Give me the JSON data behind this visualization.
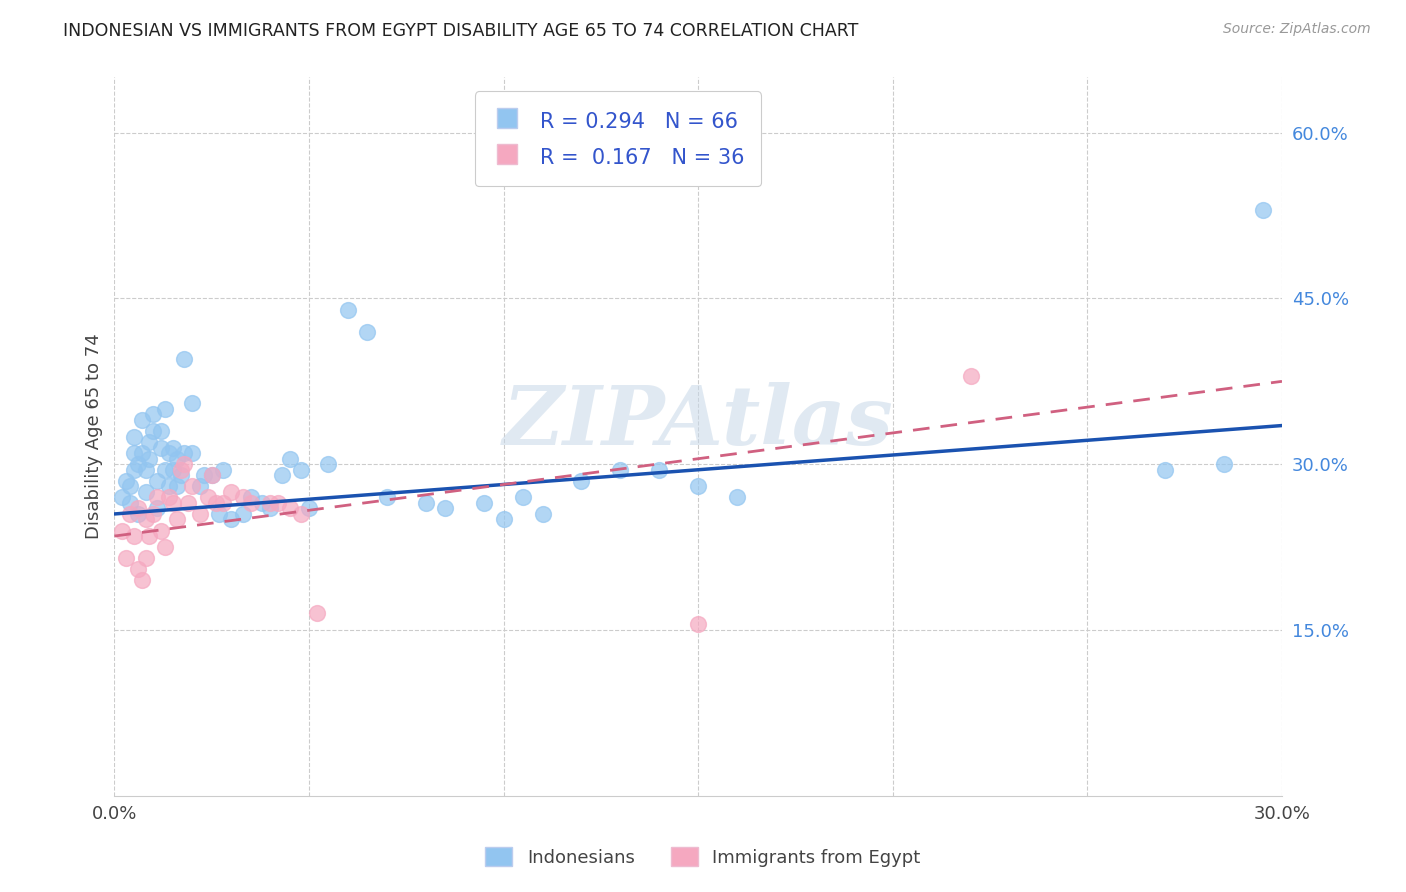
{
  "title": "INDONESIAN VS IMMIGRANTS FROM EGYPT DISABILITY AGE 65 TO 74 CORRELATION CHART",
  "source": "Source: ZipAtlas.com",
  "ylabel": "Disability Age 65 to 74",
  "xlim": [
    0.0,
    0.3
  ],
  "ylim": [
    0.0,
    0.65
  ],
  "xticks": [
    0.0,
    0.05,
    0.1,
    0.15,
    0.2,
    0.25,
    0.3
  ],
  "xtick_labels": [
    "0.0%",
    "",
    "",
    "",
    "",
    "",
    "30.0%"
  ],
  "yticks_right": [
    0.0,
    0.15,
    0.3,
    0.45,
    0.6
  ],
  "ytick_labels_right": [
    "",
    "15.0%",
    "30.0%",
    "45.0%",
    "60.0%"
  ],
  "legend_label_blue": "Indonesians",
  "legend_label_pink": "Immigrants from Egypt",
  "blue_color": "#92C5F0",
  "pink_color": "#F5A8C0",
  "blue_line_color": "#1A52B0",
  "pink_line_color": "#D06080",
  "watermark": "ZIPAtlas",
  "indonesian_x": [
    0.002,
    0.003,
    0.004,
    0.004,
    0.005,
    0.005,
    0.005,
    0.006,
    0.006,
    0.007,
    0.007,
    0.008,
    0.008,
    0.009,
    0.009,
    0.01,
    0.01,
    0.011,
    0.011,
    0.012,
    0.012,
    0.013,
    0.013,
    0.014,
    0.014,
    0.015,
    0.015,
    0.016,
    0.016,
    0.017,
    0.018,
    0.018,
    0.02,
    0.02,
    0.022,
    0.023,
    0.025,
    0.027,
    0.028,
    0.03,
    0.033,
    0.035,
    0.038,
    0.04,
    0.043,
    0.045,
    0.048,
    0.05,
    0.055,
    0.06,
    0.065,
    0.07,
    0.08,
    0.085,
    0.095,
    0.1,
    0.105,
    0.11,
    0.12,
    0.13,
    0.14,
    0.15,
    0.16,
    0.27,
    0.285,
    0.295
  ],
  "indonesian_y": [
    0.27,
    0.285,
    0.265,
    0.28,
    0.295,
    0.31,
    0.325,
    0.255,
    0.3,
    0.34,
    0.31,
    0.275,
    0.295,
    0.305,
    0.32,
    0.33,
    0.345,
    0.26,
    0.285,
    0.315,
    0.33,
    0.295,
    0.35,
    0.28,
    0.31,
    0.295,
    0.315,
    0.28,
    0.305,
    0.29,
    0.31,
    0.395,
    0.31,
    0.355,
    0.28,
    0.29,
    0.29,
    0.255,
    0.295,
    0.25,
    0.255,
    0.27,
    0.265,
    0.26,
    0.29,
    0.305,
    0.295,
    0.26,
    0.3,
    0.44,
    0.42,
    0.27,
    0.265,
    0.26,
    0.265,
    0.25,
    0.27,
    0.255,
    0.285,
    0.295,
    0.295,
    0.28,
    0.27,
    0.295,
    0.3,
    0.53
  ],
  "egypt_x": [
    0.002,
    0.003,
    0.004,
    0.005,
    0.006,
    0.006,
    0.007,
    0.008,
    0.008,
    0.009,
    0.01,
    0.011,
    0.012,
    0.013,
    0.014,
    0.015,
    0.016,
    0.017,
    0.018,
    0.019,
    0.02,
    0.022,
    0.024,
    0.025,
    0.026,
    0.028,
    0.03,
    0.033,
    0.035,
    0.04,
    0.042,
    0.045,
    0.048,
    0.052,
    0.15,
    0.22
  ],
  "egypt_y": [
    0.24,
    0.215,
    0.255,
    0.235,
    0.26,
    0.205,
    0.195,
    0.215,
    0.25,
    0.235,
    0.255,
    0.27,
    0.24,
    0.225,
    0.27,
    0.265,
    0.25,
    0.295,
    0.3,
    0.265,
    0.28,
    0.255,
    0.27,
    0.29,
    0.265,
    0.265,
    0.275,
    0.27,
    0.265,
    0.265,
    0.265,
    0.26,
    0.255,
    0.165,
    0.155,
    0.38
  ],
  "blue_regline_x0": 0.0,
  "blue_regline_y0": 0.255,
  "blue_regline_x1": 0.3,
  "blue_regline_y1": 0.335,
  "pink_regline_x0": 0.0,
  "pink_regline_y0": 0.235,
  "pink_regline_x1": 0.3,
  "pink_regline_y1": 0.375
}
